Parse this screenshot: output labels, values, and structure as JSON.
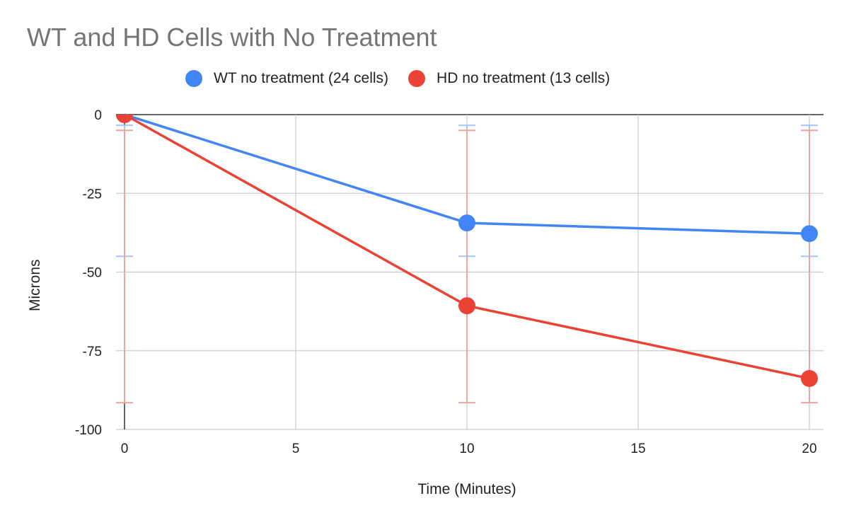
{
  "chart_data": {
    "type": "line",
    "title": "WT and HD Cells with No Treatment",
    "xlabel": "Time (Minutes)",
    "ylabel": "Microns",
    "x": [
      0,
      10,
      20
    ],
    "xlim": [
      0,
      20
    ],
    "ylim": [
      -100,
      0
    ],
    "x_ticks": [
      "0",
      "5",
      "10",
      "15",
      "20"
    ],
    "y_ticks": [
      "0",
      "-25",
      "-50",
      "-75",
      "-100"
    ],
    "grid": true,
    "legend_position": "top",
    "series": [
      {
        "name": "WT no treatment (24 cells)",
        "color": "#4285F4",
        "values": [
          0,
          -34.4,
          -37.8
        ],
        "error_bars": [
          [
            -3.4,
            -45
          ],
          [
            -3.4,
            -45
          ],
          [
            -3.4,
            -45
          ]
        ]
      },
      {
        "name": "HD no treatment (13 cells)",
        "color": "#EA4335",
        "values": [
          0,
          -60.7,
          -83.8
        ],
        "error_bars": [
          [
            -5,
            -91.5
          ],
          [
            -5,
            -91.5
          ],
          [
            -5,
            -91.5
          ]
        ]
      }
    ]
  }
}
